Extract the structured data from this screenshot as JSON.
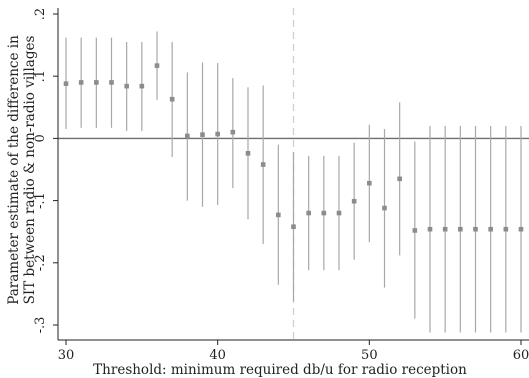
{
  "chart_data": {
    "type": "scatter",
    "xlabel": "Threshold: minimum required db/u for radio reception",
    "ylabel": [
      "Parameter estimate of the difference in",
      "SIT between radio & non-radio villages"
    ],
    "xlim": [
      29.5,
      60.5
    ],
    "ylim": [
      -0.335,
      0.215
    ],
    "x_ticks": [
      30,
      40,
      50,
      60
    ],
    "y_ticks": [
      0.2,
      0.1,
      0,
      -0.1,
      -0.2,
      -0.3
    ],
    "y_tick_labels": [
      ".2",
      ".1",
      "0",
      "-.1",
      "-.2",
      "-.3"
    ],
    "reference_lines": {
      "horizontal_y": 0,
      "vertical_x": 45
    },
    "series": [
      {
        "points": [
          {
            "x": 30,
            "y": 0.088,
            "lo": 0.015,
            "hi": 0.162
          },
          {
            "x": 31,
            "y": 0.09,
            "lo": 0.017,
            "hi": 0.162
          },
          {
            "x": 32,
            "y": 0.09,
            "lo": 0.017,
            "hi": 0.162
          },
          {
            "x": 33,
            "y": 0.09,
            "lo": 0.017,
            "hi": 0.162
          },
          {
            "x": 34,
            "y": 0.084,
            "lo": 0.012,
            "hi": 0.155
          },
          {
            "x": 35,
            "y": 0.084,
            "lo": 0.012,
            "hi": 0.155
          },
          {
            "x": 36,
            "y": 0.117,
            "lo": 0.062,
            "hi": 0.172
          },
          {
            "x": 37,
            "y": 0.063,
            "lo": -0.03,
            "hi": 0.155
          },
          {
            "x": 38,
            "y": 0.004,
            "lo": -0.1,
            "hi": 0.106
          },
          {
            "x": 39,
            "y": 0.006,
            "lo": -0.11,
            "hi": 0.122
          },
          {
            "x": 40,
            "y": 0.007,
            "lo": -0.107,
            "hi": 0.121
          },
          {
            "x": 41,
            "y": 0.01,
            "lo": -0.08,
            "hi": 0.097
          },
          {
            "x": 42,
            "y": -0.024,
            "lo": -0.13,
            "hi": 0.082
          },
          {
            "x": 43,
            "y": -0.042,
            "lo": -0.17,
            "hi": 0.085
          },
          {
            "x": 44,
            "y": -0.123,
            "lo": -0.235,
            "hi": -0.01
          },
          {
            "x": 45,
            "y": -0.142,
            "lo": -0.262,
            "hi": -0.022
          },
          {
            "x": 46,
            "y": -0.12,
            "lo": -0.212,
            "hi": -0.028
          },
          {
            "x": 47,
            "y": -0.12,
            "lo": -0.212,
            "hi": -0.028
          },
          {
            "x": 48,
            "y": -0.12,
            "lo": -0.212,
            "hi": -0.028
          },
          {
            "x": 49,
            "y": -0.101,
            "lo": -0.195,
            "hi": -0.007
          },
          {
            "x": 50,
            "y": -0.072,
            "lo": -0.167,
            "hi": 0.022
          },
          {
            "x": 51,
            "y": -0.112,
            "lo": -0.24,
            "hi": 0.015
          },
          {
            "x": 52,
            "y": -0.065,
            "lo": -0.188,
            "hi": 0.058
          },
          {
            "x": 53,
            "y": -0.148,
            "lo": -0.29,
            "hi": -0.005
          },
          {
            "x": 54,
            "y": -0.146,
            "lo": -0.312,
            "hi": 0.02
          },
          {
            "x": 55,
            "y": -0.146,
            "lo": -0.312,
            "hi": 0.02
          },
          {
            "x": 56,
            "y": -0.146,
            "lo": -0.312,
            "hi": 0.02
          },
          {
            "x": 57,
            "y": -0.146,
            "lo": -0.312,
            "hi": 0.02
          },
          {
            "x": 58,
            "y": -0.146,
            "lo": -0.312,
            "hi": 0.02
          },
          {
            "x": 59,
            "y": -0.146,
            "lo": -0.312,
            "hi": 0.02
          },
          {
            "x": 60,
            "y": -0.146,
            "lo": -0.312,
            "hi": 0.02
          }
        ]
      }
    ],
    "colors": {
      "marker": "#8c8c8c",
      "ci_line": "#a8a8a8",
      "zero_line": "#6e6e6e",
      "vertical_line": "#d0d0d0",
      "axis": "#222222"
    }
  }
}
